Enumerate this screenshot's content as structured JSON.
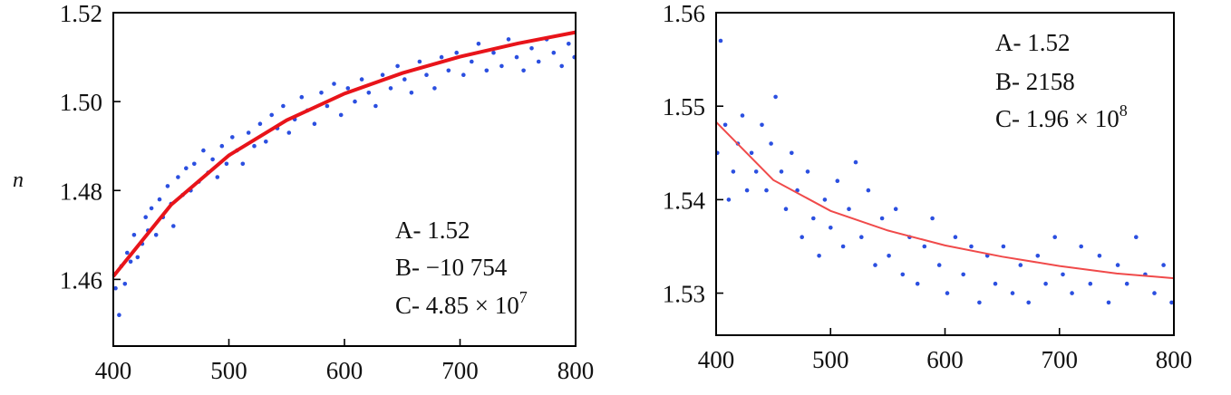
{
  "chart_data": [
    {
      "type": "scatter",
      "panel": "left",
      "title": "",
      "xlabel": "",
      "ylabel": "n",
      "xlim": [
        400,
        800
      ],
      "ylim": [
        1.445,
        1.52
      ],
      "xticks": [
        "400",
        "500",
        "600",
        "700",
        "800"
      ],
      "yticks": [
        "1.46",
        "1.48",
        "1.50",
        "1.52"
      ],
      "ytick_values": [
        1.46,
        1.48,
        1.5,
        1.52
      ],
      "grid": false,
      "annotation_lines": [
        "A- 1.52",
        "B- −10 754",
        "C- 4.85 × 10"
      ],
      "annotation_sup": "7",
      "fit": {
        "A": 1.52,
        "B": -10754,
        "C": 48500000,
        "color": "#e8141a"
      },
      "points_color": "#2b4fe0",
      "series": [
        {
          "name": "fit",
          "x": [
            400,
            450,
            500,
            550,
            600,
            650,
            700,
            750,
            800
          ],
          "y": [
            1.4607,
            1.4768,
            1.4879,
            1.4958,
            1.5018,
            1.5064,
            1.5101,
            1.5131,
            1.5156
          ]
        },
        {
          "name": "data",
          "x": [
            402,
            405,
            407,
            410,
            412,
            415,
            418,
            421,
            425,
            428,
            430,
            433,
            437,
            440,
            443,
            447,
            450,
            452,
            456,
            460,
            463,
            467,
            470,
            474,
            478,
            482,
            486,
            490,
            494,
            498,
            503,
            507,
            512,
            517,
            522,
            527,
            532,
            537,
            542,
            547,
            552,
            557,
            563,
            568,
            574,
            580,
            585,
            591,
            597,
            603,
            609,
            615,
            621,
            627,
            633,
            640,
            646,
            652,
            658,
            665,
            671,
            678,
            684,
            690,
            697,
            703,
            710,
            716,
            723,
            729,
            736,
            742,
            749,
            755,
            762,
            768,
            775,
            781,
            788,
            794,
            799
          ],
          "y": [
            1.458,
            1.452,
            1.463,
            1.459,
            1.466,
            1.464,
            1.47,
            1.465,
            1.468,
            1.474,
            1.471,
            1.476,
            1.47,
            1.478,
            1.474,
            1.481,
            1.477,
            1.472,
            1.483,
            1.479,
            1.485,
            1.48,
            1.486,
            1.482,
            1.489,
            1.484,
            1.487,
            1.483,
            1.49,
            1.486,
            1.492,
            1.489,
            1.486,
            1.493,
            1.49,
            1.495,
            1.491,
            1.497,
            1.494,
            1.499,
            1.493,
            1.496,
            1.501,
            1.498,
            1.495,
            1.502,
            1.499,
            1.504,
            1.497,
            1.503,
            1.5,
            1.505,
            1.502,
            1.499,
            1.506,
            1.503,
            1.508,
            1.505,
            1.502,
            1.509,
            1.506,
            1.503,
            1.51,
            1.507,
            1.511,
            1.506,
            1.509,
            1.513,
            1.507,
            1.511,
            1.508,
            1.514,
            1.51,
            1.507,
            1.512,
            1.509,
            1.514,
            1.511,
            1.508,
            1.513,
            1.51
          ]
        }
      ]
    },
    {
      "type": "scatter",
      "panel": "right",
      "title": "",
      "xlabel": "",
      "ylabel": "",
      "xlim": [
        400,
        800
      ],
      "ylim": [
        1.5255,
        1.56
      ],
      "xticks": [
        "400",
        "500",
        "600",
        "700",
        "800"
      ],
      "yticks": [
        "1.53",
        "1.54",
        "1.55",
        "1.56"
      ],
      "ytick_values": [
        1.53,
        1.54,
        1.55,
        1.56
      ],
      "grid": false,
      "annotation_lines": [
        "A- 1.52",
        "B- 2158",
        "C- 1.96 × 10"
      ],
      "annotation_sup": "8",
      "fit": {
        "A": 1.52,
        "B": 2158,
        "C": 196000000,
        "color": "#f04a4a"
      },
      "points_color": "#2b4fe0",
      "series": [
        {
          "name": "fit",
          "x": [
            400,
            450,
            500,
            550,
            600,
            650,
            700,
            750,
            800
          ],
          "y": [
            1.5483,
            1.5421,
            1.5388,
            1.5367,
            1.5351,
            1.5339,
            1.5329,
            1.5321,
            1.5316
          ]
        },
        {
          "name": "data",
          "x": [
            401,
            404,
            408,
            411,
            415,
            419,
            423,
            427,
            431,
            435,
            440,
            444,
            448,
            452,
            457,
            461,
            466,
            471,
            475,
            480,
            485,
            490,
            495,
            500,
            506,
            511,
            516,
            522,
            527,
            533,
            539,
            545,
            551,
            557,
            563,
            569,
            576,
            582,
            589,
            595,
            602,
            609,
            616,
            623,
            630,
            637,
            644,
            651,
            659,
            666,
            673,
            681,
            688,
            696,
            703,
            711,
            719,
            727,
            735,
            743,
            751,
            759,
            767,
            775,
            783,
            791,
            798
          ],
          "y": [
            1.545,
            1.557,
            1.548,
            1.54,
            1.543,
            1.546,
            1.549,
            1.541,
            1.545,
            1.543,
            1.548,
            1.541,
            1.546,
            1.551,
            1.543,
            1.539,
            1.545,
            1.541,
            1.536,
            1.543,
            1.538,
            1.534,
            1.54,
            1.537,
            1.542,
            1.535,
            1.539,
            1.544,
            1.536,
            1.541,
            1.533,
            1.538,
            1.534,
            1.539,
            1.532,
            1.536,
            1.531,
            1.535,
            1.538,
            1.533,
            1.53,
            1.536,
            1.532,
            1.535,
            1.529,
            1.534,
            1.531,
            1.535,
            1.53,
            1.533,
            1.529,
            1.534,
            1.531,
            1.536,
            1.532,
            1.53,
            1.535,
            1.531,
            1.534,
            1.529,
            1.533,
            1.531,
            1.536,
            1.532,
            1.53,
            1.533,
            1.529
          ]
        }
      ]
    }
  ]
}
